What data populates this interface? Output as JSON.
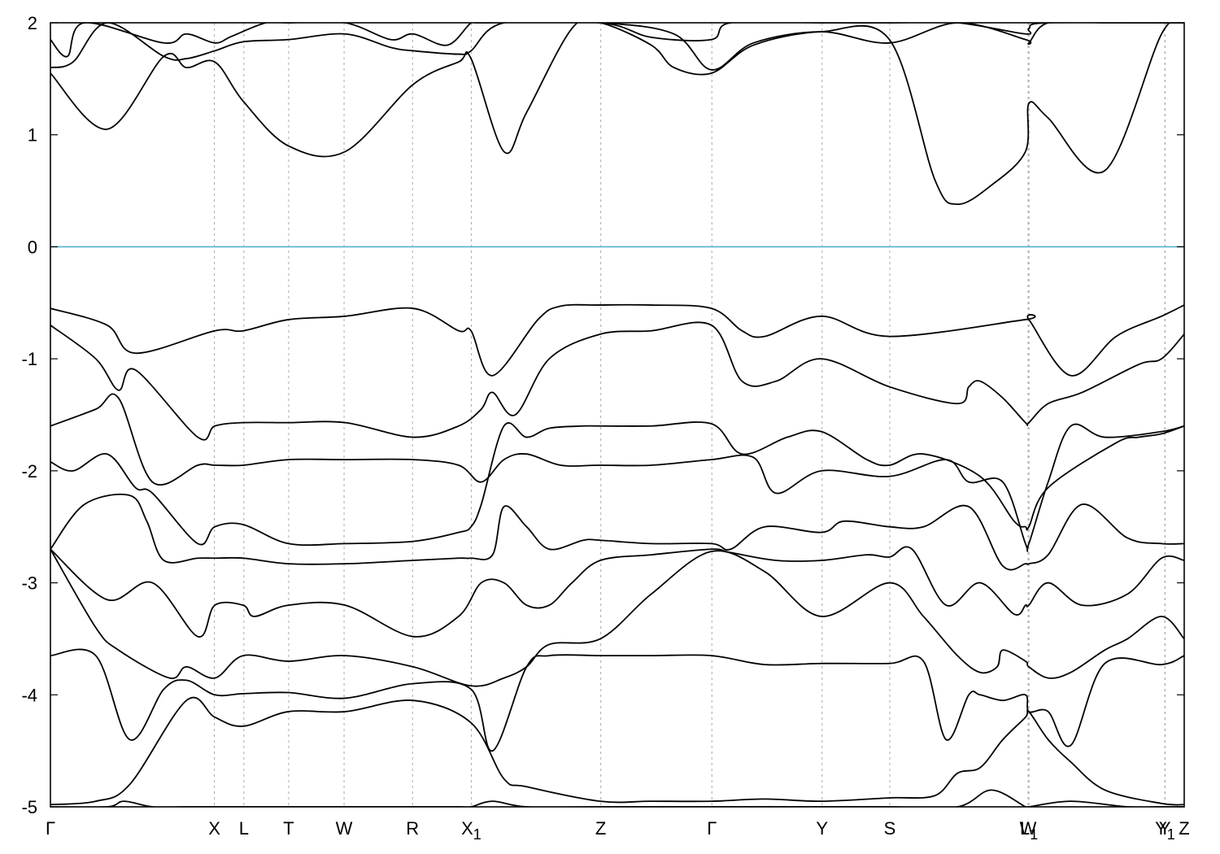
{
  "chart_data": {
    "type": "line",
    "title": "",
    "xlabel": "",
    "ylabel": "",
    "xlim": [
      0,
      1
    ],
    "ylim": [
      -5,
      2
    ],
    "y_ticks": [
      -5,
      -4,
      -3,
      -2,
      -1,
      0,
      1,
      2
    ],
    "y_tick_labels": [
      "-5",
      "-4",
      "-3",
      "-2",
      "-1",
      "0",
      "1",
      "2"
    ],
    "fermi_level": 0,
    "grid": false,
    "kpath_guides": "dashed vertical lines at each high-symmetry point",
    "colors": {
      "bands": "#000000",
      "fermi_line": "#4fb3c9",
      "guides": "#aaaaaa",
      "frame": "#000000"
    },
    "kpoints": [
      {
        "label": "Γ",
        "sub": "",
        "x": 0.0
      },
      {
        "label": "X",
        "sub": "",
        "x": 0.1446
      },
      {
        "label": "L",
        "sub": "",
        "x": 0.1706
      },
      {
        "label": "T",
        "sub": "",
        "x": 0.2101
      },
      {
        "label": "W",
        "sub": "",
        "x": 0.259
      },
      {
        "label": "R",
        "sub": "",
        "x": 0.3194
      },
      {
        "label": "X",
        "sub": "1",
        "x": 0.3712
      },
      {
        "label": "Z",
        "sub": "",
        "x": 0.4854
      },
      {
        "label": "Γ",
        "sub": "",
        "x": 0.5834
      },
      {
        "label": "Y",
        "sub": "",
        "x": 0.6806
      },
      {
        "label": "S",
        "sub": "",
        "x": 0.7403
      },
      {
        "label": "W",
        "sub": "",
        "x": 0.8623
      },
      {
        "label": "L",
        "sub": "1",
        "x": 0.8631
      },
      {
        "label": "Y",
        "sub": "",
        "x": 0.9829
      },
      {
        "label": "Y",
        "sub": "1",
        "x": 0.9831
      },
      {
        "label": "Z",
        "sub": "",
        "x": 1.0
      }
    ],
    "series": [
      {
        "x": [
          0,
          0.05,
          0.075,
          0.145,
          0.17,
          0.21,
          0.26,
          0.32,
          0.36,
          0.371,
          0.39,
          0.43,
          0.45,
          0.485,
          0.53,
          0.583,
          0.61,
          0.63,
          0.68,
          0.74,
          0.86,
          0.863,
          0.9,
          0.94,
          0.98,
          1.0
        ],
        "y": [
          -0.55,
          -0.7,
          -0.95,
          -0.75,
          -0.75,
          -0.65,
          -0.62,
          -0.55,
          -0.75,
          -0.75,
          -1.15,
          -0.65,
          -0.53,
          -0.52,
          -0.52,
          -0.55,
          -0.75,
          -0.8,
          -0.62,
          -0.8,
          -0.65,
          -0.65,
          -1.15,
          -0.8,
          -0.62,
          -0.52
        ]
      },
      {
        "x": [
          0,
          0.04,
          0.06,
          0.075,
          0.13,
          0.145,
          0.17,
          0.21,
          0.26,
          0.32,
          0.36,
          0.38,
          0.39,
          0.41,
          0.44,
          0.485,
          0.53,
          0.583,
          0.61,
          0.64,
          0.68,
          0.74,
          0.8,
          0.81,
          0.82,
          0.84,
          0.86,
          0.863,
          0.88,
          0.91,
          0.96,
          0.98,
          1.0
        ],
        "y": [
          -0.7,
          -1.0,
          -1.28,
          -1.1,
          -1.7,
          -1.6,
          -1.57,
          -1.57,
          -1.57,
          -1.7,
          -1.6,
          -1.45,
          -1.3,
          -1.5,
          -1.0,
          -0.78,
          -0.75,
          -0.7,
          -1.2,
          -1.2,
          -1.0,
          -1.25,
          -1.4,
          -1.25,
          -1.2,
          -1.35,
          -1.57,
          -1.57,
          -1.4,
          -1.3,
          -1.05,
          -1.0,
          -0.78
        ]
      },
      {
        "x": [
          0,
          0.04,
          0.06,
          0.09,
          0.13,
          0.145,
          0.17,
          0.21,
          0.26,
          0.32,
          0.36,
          0.38,
          0.4,
          0.42,
          0.45,
          0.485,
          0.53,
          0.583,
          0.62,
          0.64,
          0.68,
          0.74,
          0.79,
          0.81,
          0.84,
          0.86,
          0.863,
          0.88,
          0.9,
          0.93,
          0.98,
          1.0
        ],
        "y": [
          -1.6,
          -1.45,
          -1.35,
          -2.1,
          -1.95,
          -1.95,
          -1.95,
          -1.9,
          -1.9,
          -1.9,
          -1.95,
          -2.1,
          -1.9,
          -1.85,
          -1.95,
          -1.95,
          -1.95,
          -1.9,
          -1.88,
          -2.2,
          -2.0,
          -2.05,
          -1.9,
          -2.1,
          -2.1,
          -2.65,
          -2.65,
          -2.1,
          -1.6,
          -1.7,
          -1.65,
          -1.6
        ]
      },
      {
        "x": [
          0,
          0.02,
          0.05,
          0.075,
          0.09,
          0.13,
          0.145,
          0.17,
          0.21,
          0.26,
          0.32,
          0.36,
          0.371,
          0.38,
          0.4,
          0.42,
          0.44,
          0.47,
          0.485,
          0.53,
          0.583,
          0.61,
          0.65,
          0.68,
          0.72,
          0.74,
          0.77,
          0.82,
          0.85,
          0.86,
          0.863,
          0.88,
          0.94,
          0.96,
          0.98,
          1.0
        ],
        "y": [
          -1.92,
          -2.0,
          -1.85,
          -2.15,
          -2.2,
          -2.65,
          -2.5,
          -2.48,
          -2.65,
          -2.65,
          -2.63,
          -2.55,
          -2.5,
          -2.3,
          -1.6,
          -1.7,
          -1.62,
          -1.6,
          -1.6,
          -1.6,
          -1.58,
          -1.85,
          -1.7,
          -1.65,
          -1.9,
          -1.95,
          -1.85,
          -2.05,
          -2.45,
          -2.5,
          -2.5,
          -2.15,
          -1.75,
          -1.7,
          -1.67,
          -1.6
        ]
      },
      {
        "x": [
          0,
          0.03,
          0.07,
          0.085,
          0.1,
          0.13,
          0.145,
          0.17,
          0.21,
          0.26,
          0.32,
          0.36,
          0.371,
          0.39,
          0.4,
          0.42,
          0.44,
          0.47,
          0.485,
          0.53,
          0.583,
          0.6,
          0.63,
          0.68,
          0.7,
          0.74,
          0.77,
          0.81,
          0.84,
          0.86,
          0.863,
          0.88,
          0.91,
          0.95,
          0.98,
          1.0
        ],
        "y": [
          -2.7,
          -2.3,
          -2.22,
          -2.45,
          -2.8,
          -2.78,
          -2.78,
          -2.78,
          -2.83,
          -2.83,
          -2.8,
          -2.78,
          -2.78,
          -2.75,
          -2.32,
          -2.5,
          -2.7,
          -2.62,
          -2.62,
          -2.65,
          -2.65,
          -2.7,
          -2.5,
          -2.55,
          -2.45,
          -2.5,
          -2.5,
          -2.32,
          -2.85,
          -2.83,
          -2.83,
          -2.75,
          -2.3,
          -2.6,
          -2.65,
          -2.65
        ]
      },
      {
        "x": [
          0,
          0.05,
          0.09,
          0.13,
          0.145,
          0.17,
          0.18,
          0.21,
          0.26,
          0.32,
          0.36,
          0.38,
          0.4,
          0.42,
          0.44,
          0.46,
          0.485,
          0.53,
          0.583,
          0.6,
          0.64,
          0.68,
          0.72,
          0.74,
          0.76,
          0.79,
          0.82,
          0.85,
          0.86,
          0.863,
          0.88,
          0.91,
          0.95,
          0.98,
          1.0
        ],
        "y": [
          -2.7,
          -3.15,
          -3.0,
          -3.48,
          -3.2,
          -3.2,
          -3.3,
          -3.2,
          -3.2,
          -3.48,
          -3.3,
          -3.0,
          -3.0,
          -3.2,
          -3.2,
          -3.0,
          -2.8,
          -2.75,
          -2.7,
          -2.73,
          -2.8,
          -2.8,
          -2.75,
          -2.77,
          -2.7,
          -3.2,
          -3.0,
          -3.28,
          -3.2,
          -3.2,
          -3.0,
          -3.2,
          -3.1,
          -2.78,
          -2.8
        ]
      },
      {
        "x": [
          0,
          0.04,
          0.06,
          0.105,
          0.12,
          0.145,
          0.17,
          0.21,
          0.26,
          0.32,
          0.371,
          0.4,
          0.42,
          0.44,
          0.485,
          0.53,
          0.583,
          0.63,
          0.68,
          0.74,
          0.77,
          0.8,
          0.82,
          0.835,
          0.84,
          0.86,
          0.863,
          0.88,
          0.9,
          0.93,
          0.95,
          0.98,
          1.0
        ],
        "y": [
          -2.7,
          -3.4,
          -3.6,
          -3.85,
          -3.75,
          -3.85,
          -3.65,
          -3.7,
          -3.65,
          -3.75,
          -3.92,
          -3.85,
          -3.75,
          -3.55,
          -3.5,
          -3.1,
          -2.72,
          -2.9,
          -3.3,
          -3.0,
          -3.3,
          -3.65,
          -3.8,
          -3.75,
          -3.6,
          -3.7,
          -3.75,
          -3.85,
          -3.8,
          -3.6,
          -3.5,
          -3.3,
          -3.5
        ]
      },
      {
        "x": [
          0,
          0.04,
          0.07,
          0.1,
          0.12,
          0.145,
          0.17,
          0.21,
          0.26,
          0.32,
          0.371,
          0.39,
          0.42,
          0.44,
          0.485,
          0.53,
          0.583,
          0.63,
          0.68,
          0.74,
          0.77,
          0.79,
          0.81,
          0.82,
          0.84,
          0.86,
          0.863,
          0.88,
          0.9,
          0.93,
          0.98,
          1.0
        ],
        "y": [
          -3.65,
          -3.65,
          -4.4,
          -3.95,
          -3.87,
          -4.0,
          -3.99,
          -3.98,
          -4.03,
          -3.9,
          -3.95,
          -4.5,
          -3.75,
          -3.65,
          -3.65,
          -3.65,
          -3.65,
          -3.73,
          -3.72,
          -3.72,
          -3.7,
          -4.4,
          -4.0,
          -4.0,
          -4.05,
          -4.0,
          -4.15,
          -4.15,
          -4.45,
          -3.72,
          -3.73,
          -3.65
        ]
      },
      {
        "x": [
          0,
          0.04,
          0.07,
          0.12,
          0.145,
          0.17,
          0.21,
          0.26,
          0.32,
          0.371,
          0.4,
          0.42,
          0.485,
          0.53,
          0.583,
          0.63,
          0.68,
          0.74,
          0.78,
          0.8,
          0.82,
          0.84,
          0.86,
          0.863,
          0.88,
          0.9,
          0.93,
          0.98,
          1.0
        ],
        "y": [
          -4.98,
          -4.95,
          -4.8,
          -4.05,
          -4.2,
          -4.28,
          -4.15,
          -4.15,
          -4.05,
          -4.25,
          -4.75,
          -4.82,
          -4.95,
          -4.95,
          -4.95,
          -4.93,
          -4.95,
          -4.92,
          -4.9,
          -4.7,
          -4.65,
          -4.4,
          -4.2,
          -4.15,
          -4.4,
          -4.6,
          -4.85,
          -4.97,
          -4.98
        ]
      },
      {
        "x": [
          0,
          0.05,
          0.065,
          0.09,
          0.12,
          0.145,
          0.17,
          0.21,
          0.26,
          0.32,
          0.36,
          0.371,
          0.39,
          0.42,
          0.485,
          0.583,
          0.63,
          0.68,
          0.74,
          0.8,
          0.83,
          0.86,
          0.863,
          0.9,
          0.95,
          0.98,
          1.0
        ],
        "y": [
          -5.0,
          -5.0,
          -4.95,
          -5.0,
          -5.0,
          -5.0,
          -5.0,
          -5.0,
          -5.0,
          -5.0,
          -5.0,
          -5.0,
          -4.95,
          -5.0,
          -5.0,
          -5.0,
          -5.0,
          -5.0,
          -5.0,
          -5.0,
          -4.85,
          -5.0,
          -5.0,
          -4.95,
          -5.0,
          -5.0,
          -5.0
        ]
      },
      {
        "x": [
          0,
          0.05,
          0.1,
          0.12,
          0.145,
          0.17,
          0.21,
          0.26,
          0.32,
          0.36,
          0.371,
          0.4,
          0.42,
          0.46,
          0.485,
          0.53,
          0.55,
          0.583,
          0.62,
          0.68,
          0.74,
          0.78,
          0.8,
          0.83,
          0.86,
          0.863,
          0.88,
          0.93,
          0.98,
          1.0
        ],
        "y": [
          1.55,
          1.05,
          1.7,
          1.6,
          1.65,
          1.3,
          0.9,
          0.85,
          1.45,
          1.65,
          1.68,
          0.85,
          1.2,
          1.95,
          2.0,
          1.8,
          1.6,
          1.55,
          1.8,
          1.92,
          1.85,
          0.6,
          0.38,
          0.55,
          0.85,
          1.28,
          1.15,
          0.68,
          1.9,
          2.0
        ]
      },
      {
        "x": [
          0,
          0.02,
          0.05,
          0.1,
          0.12,
          0.145,
          0.17,
          0.21,
          0.26,
          0.3,
          0.32,
          0.36,
          0.371,
          0.4,
          0.485,
          0.55,
          0.583,
          0.62,
          0.68,
          0.74,
          0.8,
          0.86,
          0.863,
          0.88,
          0.93,
          0.98,
          1.0
        ],
        "y": [
          1.6,
          1.65,
          2.0,
          1.7,
          1.68,
          1.75,
          1.83,
          1.85,
          1.9,
          1.78,
          1.75,
          1.72,
          1.75,
          2.0,
          2.0,
          1.9,
          1.58,
          1.82,
          1.92,
          1.82,
          2.0,
          1.85,
          1.82,
          2.0,
          2.0,
          2.0,
          2.0
        ]
      },
      {
        "x": [
          0,
          0.015,
          0.03,
          0.1,
          0.12,
          0.145,
          0.16,
          0.19,
          0.21,
          0.26,
          0.3,
          0.32,
          0.35,
          0.371,
          0.38,
          0.485,
          0.53,
          0.583,
          0.6,
          0.68,
          0.74,
          0.8,
          0.86,
          0.863,
          0.88,
          1.0
        ],
        "y": [
          1.85,
          1.7,
          2.0,
          1.82,
          1.9,
          1.82,
          1.88,
          2.0,
          2.0,
          2.0,
          1.85,
          1.9,
          1.8,
          2.0,
          2.0,
          2.0,
          1.87,
          1.85,
          2.0,
          2.0,
          2.0,
          2.0,
          1.9,
          1.95,
          2.0,
          2.0
        ]
      }
    ]
  }
}
